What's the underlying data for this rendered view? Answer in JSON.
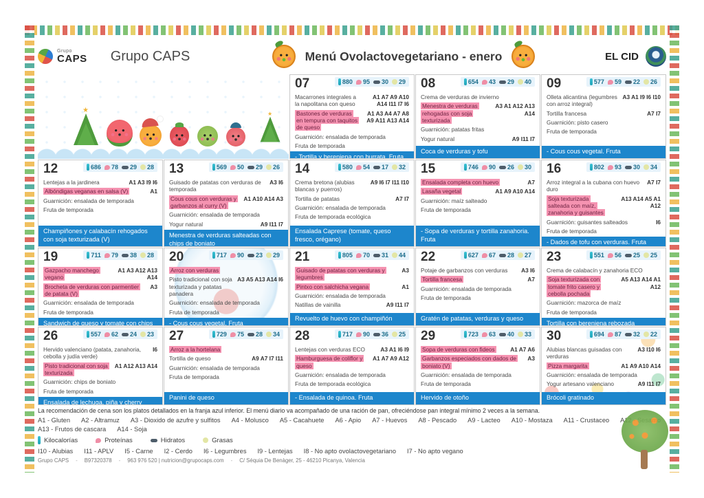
{
  "header": {
    "logo_top": "Grupo",
    "logo_main": "CAPS",
    "brand": "Grupo CAPS",
    "title": "Menú Ovolactovegetariano - enero",
    "school": "EL CID"
  },
  "days": [
    {
      "num": "07",
      "kcal": 880,
      "proteinas": 95,
      "hidratos": 30,
      "grasas": 29,
      "bg": "",
      "items": [
        {
          "text": "Macarrones integrales a la napolitana con queso",
          "codes": "A1 A7 A9 A10 A14 I11 I7 I6",
          "hl": false
        },
        {
          "text": "Bastones de verduras en tempura con taquitos de queso",
          "codes": "A1 A3 A4 A7 A8 A9 A11 A13 A14",
          "hl": true
        },
        {
          "text": "Guarnición: ensalada de temporada",
          "codes": "",
          "hl": false
        },
        {
          "text": "Fruta de temporada",
          "codes": "",
          "hl": false
        }
      ],
      "dinner": "- Tortilla y berenjena con burrata. Fruta"
    },
    {
      "num": "08",
      "kcal": 654,
      "proteinas": 43,
      "hidratos": 29,
      "grasas": 40,
      "bg": "",
      "items": [
        {
          "text": "Crema de verduras de invierno",
          "codes": "",
          "hl": false
        },
        {
          "text": "Menestra de verduras rehogadas con soja texturizada",
          "codes": "A3 A1 A12 A13 A14",
          "hl": true
        },
        {
          "text": "Guarnición: patatas fritas",
          "codes": "",
          "hl": false
        },
        {
          "text": "Yogur natural",
          "codes": "A9 I11 I7",
          "hl": false
        }
      ],
      "dinner": "Coca de verduras y tofu"
    },
    {
      "num": "09",
      "kcal": 577,
      "proteinas": 59,
      "hidratos": 22,
      "grasas": 26,
      "bg": "",
      "items": [
        {
          "text": "Olleta alicantina (legumbres con arroz integral)",
          "codes": "A3 A1 I9 I6 I10",
          "hl": false
        },
        {
          "text": "Tortilla francesa",
          "codes": "A7 I7",
          "hl": false
        },
        {
          "text": "Guarnición: pisto casero",
          "codes": "",
          "hl": false
        },
        {
          "text": "Fruta de temporada",
          "codes": "",
          "hl": false
        }
      ],
      "dinner": "- Cous cous vegetal. Fruta"
    },
    {
      "num": "12",
      "kcal": 686,
      "proteinas": 78,
      "hidratos": 29,
      "grasas": 28,
      "bg": "",
      "items": [
        {
          "text": "Lentejas a la jardinera",
          "codes": "A1 A3 I9 I6",
          "hl": false
        },
        {
          "text": "Albóndigas veganas en salsa (V)",
          "codes": "A1",
          "hl": true
        },
        {
          "text": "Guarnición: ensalada de temporada",
          "codes": "",
          "hl": false
        },
        {
          "text": "Fruta de temporada",
          "codes": "",
          "hl": false
        }
      ],
      "dinner": "Champiñones y calabacín rehogados con soja texturizada (V)"
    },
    {
      "num": "13",
      "kcal": 569,
      "proteinas": 50,
      "hidratos": 29,
      "grasas": 26,
      "bg": "",
      "items": [
        {
          "text": "Guisado de patatas con verduras de temporada",
          "codes": "A3 I6",
          "hl": false
        },
        {
          "text": "Cous cous con verduras y garbanzos al curry (V)",
          "codes": "A1 A10 A14 A3",
          "hl": true
        },
        {
          "text": "Guarnición: ensalada de temporada",
          "codes": "",
          "hl": false
        },
        {
          "text": "Yogur natural",
          "codes": "A9 I11 I7",
          "hl": false
        }
      ],
      "dinner": "Menestra de verduras salteadas con chips de boniato"
    },
    {
      "num": "14",
      "kcal": 580,
      "proteinas": 54,
      "hidratos": 17,
      "grasas": 32,
      "bg": "",
      "items": [
        {
          "text": "Crema bretona (alubias blancas y puerros)",
          "codes": "A9 I6 I7 I11 I10",
          "hl": false
        },
        {
          "text": "Tortilla de patatas",
          "codes": "A7 I7",
          "hl": false
        },
        {
          "text": "Guarnición: ensalada de temporada",
          "codes": "",
          "hl": false
        },
        {
          "text": "Fruta de temporada ecológica",
          "codes": "",
          "hl": false
        }
      ],
      "dinner": "Ensalada Caprese (tomate, queso fresco, orégano)"
    },
    {
      "num": "15",
      "kcal": 746,
      "proteinas": 90,
      "hidratos": 26,
      "grasas": 30,
      "bg": "",
      "items": [
        {
          "text": "Ensalada completa con huevo",
          "codes": "A7",
          "hl": true
        },
        {
          "text": "Lasaña vegetal",
          "codes": "A1 A9 A10 A14",
          "hl": true
        },
        {
          "text": "Guarnición: maíz salteado",
          "codes": "",
          "hl": false
        },
        {
          "text": "Fruta de temporada",
          "codes": "",
          "hl": false
        }
      ],
      "dinner": "- Sopa de verduras y tortilla zanahoria. Fruta"
    },
    {
      "num": "16",
      "kcal": 802,
      "proteinas": 93,
      "hidratos": 30,
      "grasas": 34,
      "bg": "",
      "items": [
        {
          "text": "Arroz integral a la cubana con huevo duro",
          "codes": "A7 I7",
          "hl": false
        },
        {
          "text": "Soja texturizada salteada con maíz, zanahoria y guisantes",
          "codes": "A13 A14 A5 A1 A12",
          "hl": true
        },
        {
          "text": "Guarnición: guisantes salteados",
          "codes": "I6",
          "hl": false
        },
        {
          "text": "Fruta de temporada",
          "codes": "",
          "hl": false
        }
      ],
      "dinner": "- Dados de tofu con verduras. Fruta"
    },
    {
      "num": "19",
      "kcal": 711,
      "proteinas": 79,
      "hidratos": 38,
      "grasas": 28,
      "bg": "",
      "items": [
        {
          "text": "Gazpacho manchego vegano",
          "codes": "A1 A3 A12 A13 A14",
          "hl": true
        },
        {
          "text": "Brocheta de verduras con parmentier de patata (V)",
          "codes": "A3",
          "hl": true
        },
        {
          "text": "Guarnición: ensalada de temporada",
          "codes": "",
          "hl": false
        },
        {
          "text": "Fruta de temporada",
          "codes": "",
          "hl": false
        }
      ],
      "dinner": "Sandwich de queso y tomate con chips"
    },
    {
      "num": "20",
      "kcal": 717,
      "proteinas": 90,
      "hidratos": 23,
      "grasas": 29,
      "bg": "globe",
      "items": [
        {
          "text": "Arroz con verduras",
          "codes": "",
          "hl": true
        },
        {
          "text": "Pisto tradicional con soja texturizada y patatas panadera",
          "codes": "A3 A5 A13 A14 I6",
          "hl": false
        },
        {
          "text": "Guarnición: ensalada de temporada",
          "codes": "",
          "hl": false
        },
        {
          "text": "Fruta de temporada",
          "codes": "",
          "hl": false
        }
      ],
      "dinner": "- Cous cous vegetal. Fruta"
    },
    {
      "num": "21",
      "kcal": 805,
      "proteinas": 70,
      "hidratos": 31,
      "grasas": 44,
      "bg": "",
      "items": [
        {
          "text": "Guisado de patatas con verduras y legumbres",
          "codes": "A3",
          "hl": true
        },
        {
          "text": "Pintxo con salchicha vegana",
          "codes": "A1",
          "hl": true
        },
        {
          "text": "Guarnición: ensalada de temporada",
          "codes": "",
          "hl": false
        },
        {
          "text": "Natillas de vainilla",
          "codes": "A9 I11 I7",
          "hl": false
        }
      ],
      "dinner": "Revuelto de huevo con champiñón"
    },
    {
      "num": "22",
      "kcal": 627,
      "proteinas": 67,
      "hidratos": 28,
      "grasas": 27,
      "bg": "",
      "items": [
        {
          "text": "Potaje de garbanzos con verduras",
          "codes": "A3 I6",
          "hl": false
        },
        {
          "text": "Tortilla francesa",
          "codes": "A7",
          "hl": true
        },
        {
          "text": "Guarnición: ensalada de temporada",
          "codes": "",
          "hl": false
        },
        {
          "text": "Fruta de temporada",
          "codes": "",
          "hl": false
        }
      ],
      "dinner": "Gratén de patatas, verduras y queso"
    },
    {
      "num": "23",
      "kcal": 551,
      "proteinas": 56,
      "hidratos": 25,
      "grasas": 25,
      "bg": "",
      "items": [
        {
          "text": "Crema de calabacín y zanahoria ECO",
          "codes": "",
          "hl": false
        },
        {
          "text": "Soja texturizada con tomate frito casero y cebolla pochada",
          "codes": "A5 A13 A14 A1 A12",
          "hl": true
        },
        {
          "text": "Guarnición: mazorca de maíz",
          "codes": "",
          "hl": false
        },
        {
          "text": "Fruta de temporada",
          "codes": "",
          "hl": false
        }
      ],
      "dinner": "Tortilla con berenjena rebozada"
    },
    {
      "num": "26",
      "kcal": 557,
      "proteinas": 62,
      "hidratos": 24,
      "grasas": 23,
      "bg": "",
      "items": [
        {
          "text": "Hervido valenciano (patata, zanahoria, cebolla y judía verde)",
          "codes": "I6",
          "hl": false
        },
        {
          "text": "Pisto tradicional con soja texturizada",
          "codes": "A1 A12 A13 A14",
          "hl": true
        },
        {
          "text": "Guarnición: chips de boniato",
          "codes": "",
          "hl": false
        },
        {
          "text": "Fruta de temporada",
          "codes": "",
          "hl": false
        }
      ],
      "dinner": "Ensalada de lechuga, piña y cherry"
    },
    {
      "num": "27",
      "kcal": 729,
      "proteinas": 75,
      "hidratos": 28,
      "grasas": 34,
      "bg": "",
      "items": [
        {
          "text": "Arroz a la hortelana",
          "codes": "",
          "hl": true
        },
        {
          "text": "Tortilla de queso",
          "codes": "A9 A7 I7 I11",
          "hl": false
        },
        {
          "text": "Guarnición: ensalada de temporada",
          "codes": "",
          "hl": false
        },
        {
          "text": "Fruta de temporada",
          "codes": "",
          "hl": false
        }
      ],
      "dinner": "Panini de queso"
    },
    {
      "num": "28",
      "kcal": 717,
      "proteinas": 90,
      "hidratos": 36,
      "grasas": 25,
      "bg": "",
      "items": [
        {
          "text": "Lentejas con verduras ECO",
          "codes": "A3 A1 I6 I9",
          "hl": false
        },
        {
          "text": "Hamburguesa de coliflor y queso",
          "codes": "A1 A7 A9 A12",
          "hl": true
        },
        {
          "text": "Guarnición: ensalada de temporada",
          "codes": "",
          "hl": false
        },
        {
          "text": "Fruta de temporada ecológica",
          "codes": "",
          "hl": false
        }
      ],
      "dinner": "- Ensalada de quinoa. Fruta"
    },
    {
      "num": "29",
      "kcal": 723,
      "proteinas": 63,
      "hidratos": 40,
      "grasas": 33,
      "bg": "",
      "items": [
        {
          "text": "Sopa de verduras con fideos",
          "codes": "A1 A7 A6",
          "hl": true
        },
        {
          "text": "Garbanzos especiados con dados de boniato (V)",
          "codes": "A3",
          "hl": true
        },
        {
          "text": "Guarnición: ensalada de temporada",
          "codes": "",
          "hl": false
        },
        {
          "text": "Fruta de temporada",
          "codes": "",
          "hl": false
        }
      ],
      "dinner": "Hervido de otoño"
    },
    {
      "num": "30",
      "kcal": 694,
      "proteinas": 87,
      "hidratos": 32,
      "grasas": 22,
      "bg": "hands",
      "items": [
        {
          "text": "Alubias blancas guisadas con verduras",
          "codes": "A3 I10 I6",
          "hl": false
        },
        {
          "text": "Pizza margarita",
          "codes": "A1 A9 A10 A14",
          "hl": true
        },
        {
          "text": "Guarnición: ensalada de temporada",
          "codes": "",
          "hl": false
        },
        {
          "text": "Yogur artesano valenciano",
          "codes": "A9 I11 I7",
          "hl": false
        }
      ],
      "dinner": "Brócoli gratinado"
    }
  ],
  "legend": {
    "note": "La recomendación de cena son los platos detallados en la franja azul inferior. El menú diario va acompañado de una ración de pan, ofreciéndose pan integral mínimo 2 veces a la semana.",
    "allergens_line1": [
      "A1 - Gluten",
      "A2 - Altramuz",
      "A3 - Dioxido de azufre y sulfitos",
      "A4 - Molusco",
      "A5 - Cacahuete",
      "A6 - Apio",
      "A7 - Huevos",
      "A8 - Pescado",
      "A9 - Lacteo",
      "A10 - Mostaza",
      "A11 - Crustaceo",
      "A12 - Sesamo"
    ],
    "allergens_line2": [
      "A13 - Frutos de cascara",
      "A14 - Soja"
    ],
    "nutrition": [
      {
        "icon": "kilocalories-icon",
        "label": "Kilocalorías"
      },
      {
        "icon": "proteins-icon",
        "label": "Proteínas"
      },
      {
        "icon": "carbohydrates-icon",
        "label": "Hidratos"
      },
      {
        "icon": "fats-icon",
        "label": "Grasas"
      }
    ],
    "intolerances": [
      "I10 - Alubias",
      "I11 - APLV",
      "I5 - Carne",
      "I2 - Cerdo",
      "I6 - Legumbres",
      "I9 - Lentejas",
      "I8 - No apto ovolactovegetariano",
      "I7 - No apto vegano"
    ],
    "contact": [
      "Grupo CAPS",
      "B97320378",
      "963 976 520 | nutricion@grupocaps.com",
      "C/ Séquia De Benàger, 25 - 46210 Picanya, Valencia"
    ]
  },
  "colors": {
    "dinner_bar": "#1d86cc",
    "highlight": "#f593b1",
    "stats_bg": "#e7f3fb"
  }
}
